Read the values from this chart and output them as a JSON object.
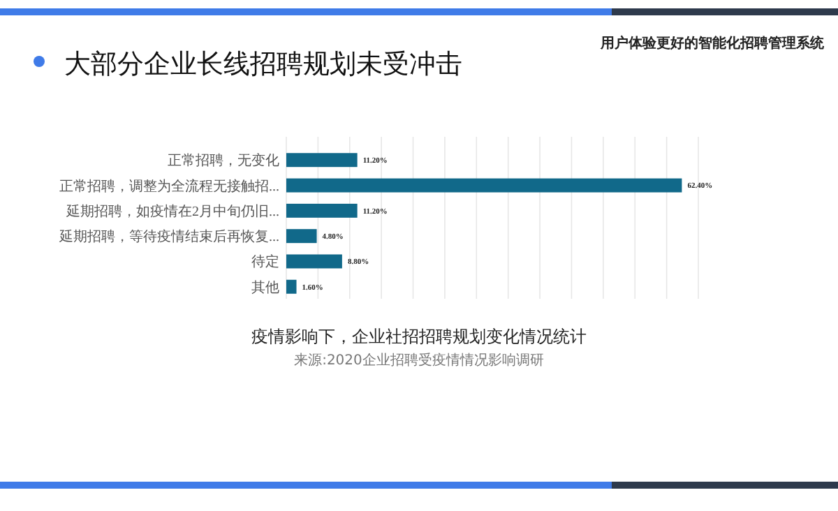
{
  "chart_data": {
    "type": "bar",
    "orientation": "horizontal",
    "title": "大部分企业长线招聘规划未受冲击",
    "subtitle": "疫情影响下，企业社招招聘规划变化情况统计",
    "annotations": [
      "来源:2020企业招聘受疫情情况影响调研",
      "用户体验更好的智能化招聘管理系统"
    ],
    "categories": [
      "正常招聘，无变化",
      "正常招聘，调整为全流程无接触招...",
      "延期招聘，如疫情在2月中旬仍旧...",
      "延期招聘，等待疫情结束后再恢复...",
      "待定",
      "其他"
    ],
    "values": [
      11.2,
      62.4,
      11.2,
      4.8,
      8.8,
      1.6
    ],
    "value_labels": [
      "11.20%",
      "62.40%",
      "11.20%",
      "4.80%",
      "8.80%",
      "1.60%"
    ],
    "color": "#11698a",
    "xlim": [
      0,
      65
    ],
    "xticks": [
      {
        "value": 0,
        "label": null
      },
      {
        "value": 5,
        "label": null
      },
      {
        "value": 10,
        "label": null
      },
      {
        "value": 15,
        "label": null
      },
      {
        "value": 20,
        "label": null
      },
      {
        "value": 25,
        "label": null
      },
      {
        "value": 30,
        "label": null
      },
      {
        "value": 35,
        "label": null
      },
      {
        "value": 40,
        "label": null
      },
      {
        "value": 45,
        "label": null
      },
      {
        "value": 50,
        "label": null
      },
      {
        "value": 55,
        "label": null
      },
      {
        "value": 60,
        "label": null
      },
      {
        "value": 65,
        "label": null
      }
    ],
    "grid": "x",
    "tick_labels": "y"
  }
}
